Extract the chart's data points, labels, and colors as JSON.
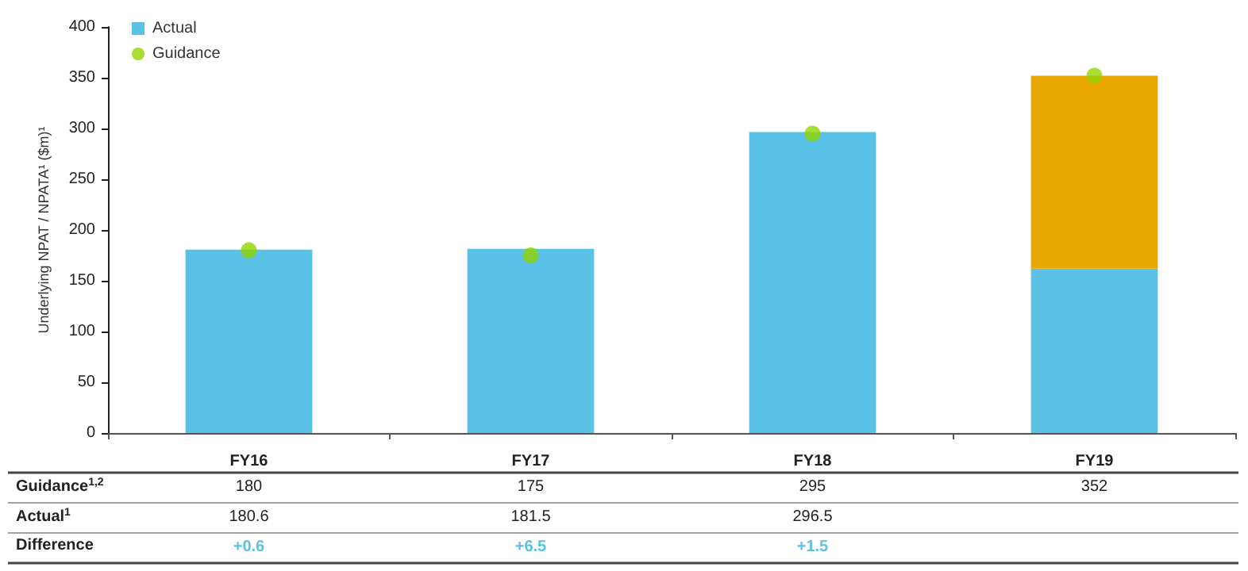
{
  "chart_data": {
    "type": "bar",
    "stacked": true,
    "categories": [
      "FY16",
      "FY17",
      "FY18",
      "FY19"
    ],
    "ylabel": "Underlying NPAT / NPATA¹ ($m)¹",
    "series": [
      {
        "name": "Actual",
        "color": "#5bc2e7",
        "values": [
          180.6,
          181.5,
          296.5,
          162
        ],
        "value_labels": [
          "180.6",
          "181.5",
          "296.5",
          null
        ]
      },
      {
        "color": "#e8a800",
        "values": [
          null,
          null,
          null,
          190
        ]
      },
      {
        "name": "Guidance",
        "type": "scatter",
        "color": "#92d400",
        "values": [
          180,
          175,
          295,
          352
        ],
        "value_labels": [
          "180",
          "175",
          "295",
          "352"
        ]
      }
    ],
    "annotations": [
      "Guidance$^{1,2}$",
      "Actual$^{1}$",
      "Difference",
      "+0.6",
      "+6.5",
      "+1.5"
    ],
    "ylim": [
      0,
      400
    ],
    "yticks": [
      0,
      50,
      100,
      150,
      200,
      250,
      300,
      350,
      400
    ],
    "grid": false,
    "legend": "top left",
    "marker": "circle"
  }
}
